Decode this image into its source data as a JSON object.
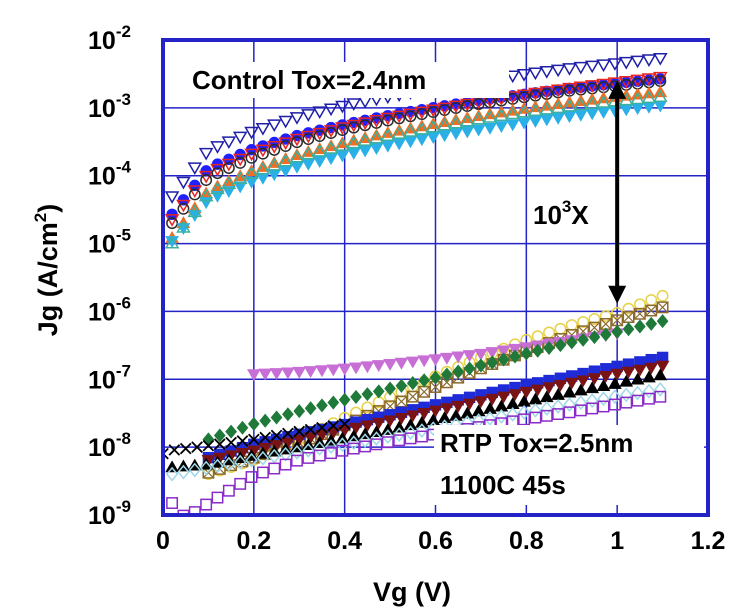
{
  "chart_data": {
    "type": "scatter",
    "title": "",
    "xlabel": "Vg (V)",
    "ylabel": "Jg (A/cm",
    "ylabel_sup": "2",
    "ylabel_tail": ")",
    "xlim": [
      0,
      1.2
    ],
    "ylim": [
      1e-09,
      0.01
    ],
    "yscale": "log",
    "grid": true,
    "x_ticks": [
      0,
      0.2,
      0.4,
      0.6,
      0.8,
      1,
      1.2
    ],
    "x_tick_labels": [
      "0",
      "0.2",
      "0.4",
      "0.6",
      "0.8",
      "1",
      "1.2"
    ],
    "y_ticks": [
      {
        "value": 1e-09,
        "base": "10",
        "exp": "-9"
      },
      {
        "value": 1e-08,
        "base": "10",
        "exp": "-8"
      },
      {
        "value": 1e-07,
        "base": "10",
        "exp": "-7"
      },
      {
        "value": 1e-06,
        "base": "10",
        "exp": "-6"
      },
      {
        "value": 1e-05,
        "base": "10",
        "exp": "-5"
      },
      {
        "value": 0.0001,
        "base": "10",
        "exp": "-4"
      },
      {
        "value": 0.001,
        "base": "10",
        "exp": "-3"
      },
      {
        "value": 0.01,
        "base": "10",
        "exp": "-2"
      }
    ],
    "annotations": {
      "control": "Control Tox=2.4nm",
      "rtp": "RTP Tox=2.5nm",
      "rtp_condition": "1100C 45s",
      "ratio_base": "10",
      "ratio_exp": "3",
      "ratio_tail": "X",
      "arrow": {
        "x": 1.0,
        "y_top": 0.0025,
        "y_bottom": 1.3e-06
      }
    },
    "series": [
      {
        "group": "Control",
        "color": "#1f1fa8",
        "marker": "triangle-down-open",
        "points": [
          [
            0.02,
            5e-05
          ],
          [
            0.1,
            0.00024
          ],
          [
            0.2,
            0.00046
          ],
          [
            0.3,
            0.00075
          ],
          [
            0.4,
            0.0011
          ],
          [
            0.5,
            0.0015
          ],
          [
            0.6,
            0.002
          ],
          [
            0.7,
            0.0026
          ],
          [
            0.8,
            0.0032
          ],
          [
            0.9,
            0.0039
          ],
          [
            1.0,
            0.0046
          ],
          [
            1.1,
            0.0055
          ]
        ]
      },
      {
        "group": "Control",
        "color": "#2020ff",
        "marker": "circle",
        "points": [
          [
            0.02,
            2.7e-05
          ],
          [
            0.1,
            0.00013
          ],
          [
            0.2,
            0.00025
          ],
          [
            0.3,
            0.0004
          ],
          [
            0.4,
            0.00057
          ],
          [
            0.5,
            0.00078
          ],
          [
            0.6,
            0.00102
          ],
          [
            0.7,
            0.0013
          ],
          [
            0.8,
            0.0016
          ],
          [
            0.9,
            0.00195
          ],
          [
            1.0,
            0.0023
          ],
          [
            1.1,
            0.0027
          ]
        ]
      },
      {
        "group": "Control",
        "color": "#e8251f",
        "marker": "triangle-down-open",
        "points": [
          [
            0.02,
            2.3e-05
          ],
          [
            0.1,
            0.00011
          ],
          [
            0.2,
            0.00022
          ],
          [
            0.3,
            0.00036
          ],
          [
            0.4,
            0.00053
          ],
          [
            0.5,
            0.00073
          ],
          [
            0.6,
            0.00096
          ],
          [
            0.7,
            0.00125
          ],
          [
            0.8,
            0.0016
          ],
          [
            0.9,
            0.002
          ],
          [
            1.0,
            0.0024
          ],
          [
            1.1,
            0.0029
          ]
        ]
      },
      {
        "group": "Control",
        "color": "#2b2b2b",
        "marker": "circle-open",
        "points": [
          [
            0.02,
            2e-05
          ],
          [
            0.1,
            9.5e-05
          ],
          [
            0.2,
            0.00019
          ],
          [
            0.3,
            0.00032
          ],
          [
            0.4,
            0.00048
          ],
          [
            0.5,
            0.00066
          ],
          [
            0.6,
            0.00088
          ],
          [
            0.7,
            0.00115
          ],
          [
            0.8,
            0.00145
          ],
          [
            0.9,
            0.0018
          ],
          [
            1.0,
            0.0021
          ],
          [
            1.1,
            0.0025
          ]
        ]
      },
      {
        "group": "Control",
        "color": "#f26d21",
        "marker": "triangle",
        "points": [
          [
            0.02,
            1.2e-05
          ],
          [
            0.1,
            6e-05
          ],
          [
            0.2,
            0.00012
          ],
          [
            0.3,
            0.000205
          ],
          [
            0.4,
            0.000305
          ],
          [
            0.5,
            0.00043
          ],
          [
            0.6,
            0.00058
          ],
          [
            0.7,
            0.00076
          ],
          [
            0.8,
            0.00097
          ],
          [
            0.9,
            0.0012
          ],
          [
            1.0,
            0.00145
          ],
          [
            1.1,
            0.0017
          ]
        ]
      },
      {
        "group": "Control",
        "color": "#2ab0e6",
        "marker": "triangle-down",
        "points": [
          [
            0.02,
            1.1e-05
          ],
          [
            0.1,
            4.5e-05
          ],
          [
            0.2,
            8.5e-05
          ],
          [
            0.3,
            0.00014
          ],
          [
            0.4,
            0.000205
          ],
          [
            0.5,
            0.000285
          ],
          [
            0.6,
            0.00038
          ],
          [
            0.7,
            0.00049
          ],
          [
            0.8,
            0.00062
          ],
          [
            0.9,
            0.00077
          ],
          [
            1.0,
            0.00093
          ],
          [
            1.1,
            0.0011
          ]
        ]
      },
      {
        "group": "Control",
        "color": "#3cb09c",
        "marker": "triangle-open",
        "points": [
          [
            0.02,
            1e-05
          ],
          [
            0.1,
            5.5e-05
          ],
          [
            0.2,
            0.00011
          ],
          [
            0.3,
            0.00019
          ],
          [
            0.4,
            0.00028
          ],
          [
            0.5,
            0.00039
          ],
          [
            0.6,
            0.00052
          ],
          [
            0.7,
            0.00068
          ],
          [
            0.8,
            0.00086
          ],
          [
            0.9,
            0.00105
          ],
          [
            1.0,
            0.00125
          ],
          [
            1.1,
            0.00145
          ]
        ]
      },
      {
        "group": "RTP",
        "color": "#e6d24a",
        "marker": "circle-open",
        "points": [
          [
            0.1,
            4e-09
          ],
          [
            0.2,
            6.5e-09
          ],
          [
            0.3,
            1.3e-08
          ],
          [
            0.4,
            2.7e-08
          ],
          [
            0.5,
            5.5e-08
          ],
          [
            0.6,
            1.1e-07
          ],
          [
            0.7,
            2.1e-07
          ],
          [
            0.8,
            3.8e-07
          ],
          [
            0.9,
            6.3e-07
          ],
          [
            1.0,
            9.5e-07
          ],
          [
            1.1,
            1.7e-06
          ]
        ]
      },
      {
        "group": "RTP",
        "color": "#8c6a2d",
        "marker": "square-x-open",
        "points": [
          [
            0.1,
            4.2e-09
          ],
          [
            0.2,
            7e-09
          ],
          [
            0.3,
            1.15e-08
          ],
          [
            0.4,
            2.1e-08
          ],
          [
            0.5,
            4e-08
          ],
          [
            0.6,
            7.7e-08
          ],
          [
            0.7,
            1.45e-07
          ],
          [
            0.8,
            2.6e-07
          ],
          [
            0.9,
            4.5e-07
          ],
          [
            1.0,
            7.4e-07
          ],
          [
            1.1,
            1.15e-06
          ]
        ]
      },
      {
        "group": "RTP",
        "color": "#c86fd6",
        "marker": "triangle-down",
        "points": [
          [
            0.2,
            1.2e-07
          ],
          [
            0.3,
            1.3e-07
          ],
          [
            0.4,
            1.45e-07
          ],
          [
            0.5,
            1.7e-07
          ],
          [
            0.6,
            2e-07
          ],
          [
            0.7,
            2.4e-07
          ],
          [
            0.8,
            3e-07
          ],
          [
            0.9,
            3.8e-07
          ],
          [
            1.0,
            4.8e-07
          ]
        ]
      },
      {
        "group": "RTP",
        "color": "#1f7a3a",
        "marker": "diamond",
        "points": [
          [
            0.1,
            1.3e-08
          ],
          [
            0.2,
            2.2e-08
          ],
          [
            0.3,
            3.4e-08
          ],
          [
            0.4,
            5e-08
          ],
          [
            0.5,
            7.3e-08
          ],
          [
            0.6,
            1.06e-07
          ],
          [
            0.7,
            1.6e-07
          ],
          [
            0.8,
            2.4e-07
          ],
          [
            0.9,
            3.5e-07
          ],
          [
            1.0,
            5e-07
          ],
          [
            1.1,
            7.2e-07
          ]
        ]
      },
      {
        "group": "RTP",
        "color": "#1e2bd6",
        "marker": "square",
        "points": [
          [
            0.1,
            7e-09
          ],
          [
            0.2,
            1.1e-08
          ],
          [
            0.3,
            1.55e-08
          ],
          [
            0.4,
            2.15e-08
          ],
          [
            0.5,
            3e-08
          ],
          [
            0.6,
            4.2e-08
          ],
          [
            0.7,
            5.9e-08
          ],
          [
            0.8,
            8.2e-08
          ],
          [
            0.9,
            1.12e-07
          ],
          [
            1.0,
            1.55e-07
          ],
          [
            1.1,
            2.1e-07
          ]
        ]
      },
      {
        "group": "RTP",
        "color": "#7a1414",
        "marker": "triangle-down",
        "points": [
          [
            0.1,
            6.5e-09
          ],
          [
            0.2,
            9e-09
          ],
          [
            0.3,
            1.3e-08
          ],
          [
            0.4,
            1.8e-08
          ],
          [
            0.5,
            2.5e-08
          ],
          [
            0.6,
            3.5e-08
          ],
          [
            0.7,
            4.8e-08
          ],
          [
            0.8,
            6.6e-08
          ],
          [
            0.9,
            9e-08
          ],
          [
            1.0,
            1.22e-07
          ],
          [
            1.1,
            1.6e-07
          ]
        ]
      },
      {
        "group": "RTP",
        "color": "#000000",
        "marker": "triangle",
        "points": [
          [
            0.02,
            5e-09
          ],
          [
            0.1,
            5.5e-09
          ],
          [
            0.2,
            7.5e-09
          ],
          [
            0.3,
            1e-08
          ],
          [
            0.4,
            1.35e-08
          ],
          [
            0.5,
            1.8e-08
          ],
          [
            0.6,
            2.5e-08
          ],
          [
            0.7,
            3.4e-08
          ],
          [
            0.8,
            4.7e-08
          ],
          [
            0.9,
            6.4e-08
          ],
          [
            1.0,
            8.6e-08
          ],
          [
            1.1,
            1.15e-07
          ]
        ]
      },
      {
        "group": "RTP",
        "color": "#9fd8e8",
        "marker": "diamond-open",
        "points": [
          [
            0.02,
            4e-09
          ],
          [
            0.1,
            5e-09
          ],
          [
            0.2,
            6.5e-09
          ],
          [
            0.3,
            8.5e-09
          ],
          [
            0.4,
            1.1e-08
          ],
          [
            0.5,
            1.45e-08
          ],
          [
            0.6,
            1.9e-08
          ],
          [
            0.7,
            2.5e-08
          ],
          [
            0.8,
            3.3e-08
          ],
          [
            0.9,
            4.3e-08
          ],
          [
            1.0,
            5.6e-08
          ],
          [
            1.1,
            7.2e-08
          ]
        ]
      },
      {
        "group": "RTP",
        "color": "#8a2bc8",
        "marker": "square-open",
        "points": [
          [
            0.02,
            1.5e-09
          ],
          [
            0.05,
            9e-10
          ],
          [
            0.1,
            1.5e-09
          ],
          [
            0.2,
            3.8e-09
          ],
          [
            0.3,
            6.5e-09
          ],
          [
            0.4,
            9e-09
          ],
          [
            0.5,
            1.2e-08
          ],
          [
            0.6,
            1.55e-08
          ],
          [
            0.7,
            2e-08
          ],
          [
            0.8,
            2.6e-08
          ],
          [
            0.9,
            3.3e-08
          ],
          [
            1.0,
            4.3e-08
          ],
          [
            1.1,
            5.6e-08
          ]
        ]
      },
      {
        "group": "RTP",
        "color": "#000000",
        "marker": "x",
        "points": [
          [
            0.0,
            8e-09
          ],
          [
            0.02,
            9e-09
          ],
          [
            0.1,
            1.05e-08
          ],
          [
            0.2,
            1.3e-08
          ],
          [
            0.3,
            1.7e-08
          ],
          [
            0.4,
            2.2e-08
          ]
        ]
      }
    ]
  }
}
